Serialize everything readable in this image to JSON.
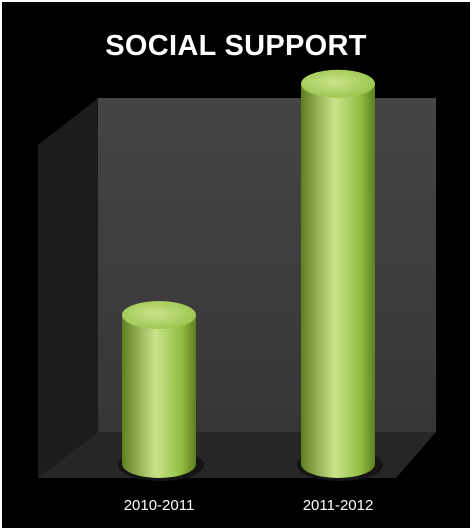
{
  "chart_data": {
    "type": "bar",
    "style": "3d-cylinder",
    "title": "SOCIAL SUPPORT",
    "categories": [
      "2010-2011",
      "2011-2012"
    ],
    "values": [
      38,
      97
    ],
    "ylim": [
      0,
      100
    ],
    "grid": false,
    "legend": "none",
    "xlabel": "",
    "ylabel": "",
    "colors": {
      "background": "#000000",
      "wall": "#3e3e3e",
      "floor": "#262626",
      "bar_main": "#93bf43",
      "bar_light": "#c9e48a",
      "bar_dark": "#5d7e20",
      "text": "#ffffff"
    }
  }
}
